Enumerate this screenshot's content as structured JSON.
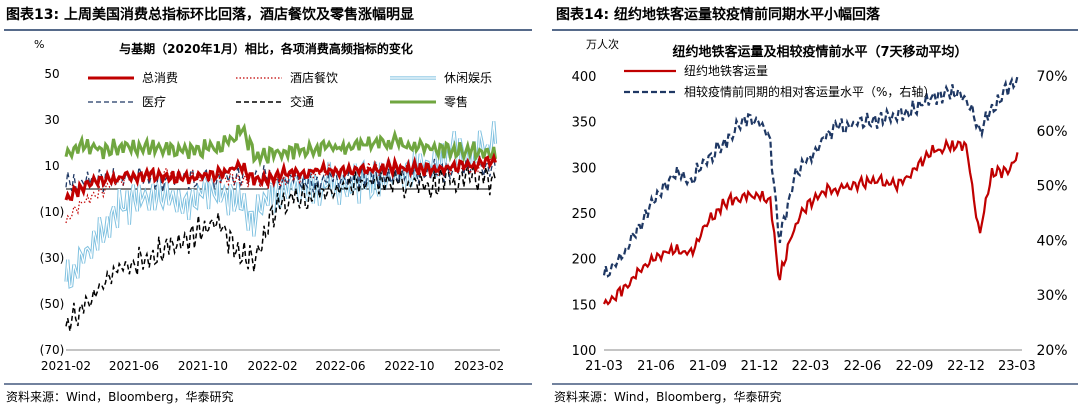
{
  "left_panel": {
    "fig_title": "图表13:  上周美国消费总指标环比回落，酒店餐饮及零售涨幅明显",
    "source": "资料来源：Wind，Bloomberg，华泰研究"
  },
  "right_panel": {
    "fig_title": "图表14:  纽约地铁客运量较疫情前同期水平小幅回落",
    "source": "资料来源：Wind，Bloomberg，华泰研究"
  },
  "chart_data": [
    {
      "type": "line",
      "title": "与基期（2020年1月）相比，各项消费高频指标的变化",
      "ylabel": "%",
      "ylim": [
        -70,
        50
      ],
      "yticks": [
        50,
        30,
        10,
        -10,
        -30,
        -50,
        -70
      ],
      "ytick_labels": [
        "50",
        "30",
        "10",
        "(10)",
        "(30)",
        "(50)",
        "(70)"
      ],
      "xlim": [
        "2021-02-01",
        "2023-03-10"
      ],
      "xticks": [
        "2021-02-01",
        "2021-06-01",
        "2021-10-01",
        "2022-02-01",
        "2022-06-01",
        "2022-10-01",
        "2023-02-01"
      ],
      "xtick_labels": [
        "2021-02",
        "2021-06",
        "2021-10",
        "2022-02",
        "2022-06",
        "2022-10",
        "2023-02"
      ],
      "legend_position": "top",
      "series": [
        {
          "name": "总消费",
          "color": "#c00000",
          "style": "solid",
          "width": 3,
          "x": [
            "2021-02-01",
            "2021-03-15",
            "2021-05-01",
            "2021-07-01",
            "2021-09-01",
            "2021-11-01",
            "2021-12-10",
            "2022-01-01",
            "2022-03-01",
            "2022-05-01",
            "2022-07-01",
            "2022-09-01",
            "2022-11-01",
            "2023-01-01",
            "2023-03-05"
          ],
          "y": [
            -4,
            3,
            5,
            6,
            5,
            7,
            10,
            3,
            7,
            8,
            8,
            9,
            9,
            10,
            12
          ]
        },
        {
          "name": "酒店餐饮",
          "color": "#c00000",
          "style": "dotted",
          "width": 1.2,
          "x": [
            "2021-02-01",
            "2021-03-01",
            "2021-04-01",
            "2021-05-01",
            "2021-06-01",
            "2021-08-01",
            "2021-10-01",
            "2021-12-01",
            "2022-02-01",
            "2022-04-01",
            "2022-06-01",
            "2022-08-01",
            "2022-10-01",
            "2022-12-01",
            "2023-02-01",
            "2023-03-05"
          ],
          "y": [
            -14,
            -6,
            -1,
            3,
            6,
            7,
            5,
            4,
            3,
            6,
            8,
            9,
            9,
            8,
            10,
            16
          ]
        },
        {
          "name": "休闲娱乐",
          "color": "#7fc1e0",
          "style": "double",
          "width": 3,
          "x": [
            "2021-02-01",
            "2021-03-01",
            "2021-04-01",
            "2021-05-01",
            "2021-06-01",
            "2021-07-01",
            "2021-08-01",
            "2021-09-01",
            "2021-10-01",
            "2021-11-01",
            "2021-12-01",
            "2022-01-01",
            "2022-02-01",
            "2022-03-01",
            "2022-05-01",
            "2022-07-01",
            "2022-09-01",
            "2022-11-01",
            "2022-12-20",
            "2023-01-15",
            "2023-03-05"
          ],
          "y": [
            -38,
            -30,
            -20,
            -10,
            -5,
            -2,
            -4,
            -5,
            -3,
            0,
            -5,
            -12,
            -3,
            0,
            2,
            3,
            5,
            10,
            18,
            12,
            22
          ]
        },
        {
          "name": "医疗",
          "color": "#1f3864",
          "style": "dashed",
          "width": 1.3,
          "x": [
            "2021-02-01",
            "2021-04-01",
            "2021-06-01",
            "2021-08-01",
            "2021-10-01",
            "2021-12-01",
            "2022-02-01",
            "2022-04-01",
            "2022-06-01",
            "2022-08-01",
            "2022-10-01",
            "2022-12-01",
            "2023-02-01",
            "2023-03-05"
          ],
          "y": [
            2,
            4,
            5,
            4,
            5,
            6,
            5,
            3,
            5,
            6,
            7,
            8,
            10,
            11
          ]
        },
        {
          "name": "交通",
          "color": "#000000",
          "style": "dashed",
          "width": 1.5,
          "x": [
            "2021-02-01",
            "2021-03-01",
            "2021-04-01",
            "2021-05-01",
            "2021-06-01",
            "2021-07-01",
            "2021-08-01",
            "2021-09-01",
            "2021-10-01",
            "2021-11-01",
            "2021-12-01",
            "2022-01-01",
            "2022-02-01",
            "2022-03-01",
            "2022-05-01",
            "2022-07-01",
            "2022-09-01",
            "2022-11-01",
            "2023-01-01",
            "2023-03-05"
          ],
          "y": [
            -58,
            -52,
            -42,
            -35,
            -32,
            -28,
            -25,
            -22,
            -18,
            -15,
            -28,
            -30,
            -10,
            -5,
            -2,
            2,
            3,
            2,
            4,
            5
          ]
        },
        {
          "name": "零售",
          "color": "#70a640",
          "style": "solid",
          "width": 3,
          "x": [
            "2021-02-01",
            "2021-03-01",
            "2021-04-01",
            "2021-05-01",
            "2021-07-01",
            "2021-09-01",
            "2021-11-01",
            "2021-12-10",
            "2022-01-01",
            "2022-03-01",
            "2022-05-01",
            "2022-07-01",
            "2022-09-01",
            "2022-11-01",
            "2023-01-01",
            "2023-03-05"
          ],
          "y": [
            15,
            20,
            17,
            18,
            19,
            17,
            18,
            25,
            14,
            16,
            18,
            19,
            20,
            18,
            17,
            15
          ]
        }
      ]
    },
    {
      "type": "line",
      "title": "纽约地铁客运量及相较疫情前水平（7天移动平均）",
      "ylabel": "万人次",
      "ylim": [
        100,
        400
      ],
      "yticks": [
        100,
        150,
        200,
        250,
        300,
        350,
        400
      ],
      "y2lim": [
        20,
        70
      ],
      "y2ticks": [
        20,
        30,
        40,
        50,
        60,
        70
      ],
      "y2tick_labels": [
        "20%",
        "30%",
        "40%",
        "50%",
        "60%",
        "70%"
      ],
      "xlim": [
        "2021-03-01",
        "2023-03-10"
      ],
      "xticks": [
        "2021-03-01",
        "2021-06-01",
        "2021-09-01",
        "2021-12-01",
        "2022-03-01",
        "2022-06-01",
        "2022-09-01",
        "2022-12-01",
        "2023-03-01"
      ],
      "xtick_labels": [
        "21-03",
        "21-06",
        "21-09",
        "21-12",
        "22-03",
        "22-06",
        "22-09",
        "22-12",
        "23-03"
      ],
      "legend_position": "top-left",
      "series": [
        {
          "name": "纽约地铁客运量",
          "color": "#c00000",
          "style": "solid",
          "width": 2.2,
          "axis": "left",
          "x": [
            "2021-03-01",
            "2021-04-01",
            "2021-05-01",
            "2021-06-01",
            "2021-07-01",
            "2021-08-01",
            "2021-09-01",
            "2021-10-01",
            "2021-11-01",
            "2021-12-01",
            "2021-12-20",
            "2022-01-05",
            "2022-02-01",
            "2022-03-01",
            "2022-04-01",
            "2022-05-01",
            "2022-06-01",
            "2022-07-01",
            "2022-08-01",
            "2022-09-01",
            "2022-10-01",
            "2022-11-01",
            "2022-12-01",
            "2022-12-25",
            "2023-01-15",
            "2023-02-15",
            "2023-03-05"
          ],
          "y": [
            152,
            165,
            185,
            205,
            210,
            205,
            240,
            262,
            268,
            270,
            262,
            178,
            235,
            262,
            275,
            278,
            282,
            285,
            282,
            295,
            318,
            322,
            325,
            225,
            292,
            298,
            315
          ]
        },
        {
          "name": "相较疫情前同期的相对客运量水平（%，右轴）",
          "color": "#1f3864",
          "style": "dashed",
          "width": 2.2,
          "axis": "right",
          "x": [
            "2021-03-01",
            "2021-04-01",
            "2021-05-01",
            "2021-06-01",
            "2021-07-01",
            "2021-08-01",
            "2021-09-01",
            "2021-10-01",
            "2021-11-01",
            "2021-12-01",
            "2021-12-20",
            "2022-01-05",
            "2022-02-01",
            "2022-03-01",
            "2022-04-01",
            "2022-05-01",
            "2022-07-01",
            "2022-09-01",
            "2022-10-01",
            "2022-11-01",
            "2022-12-01",
            "2022-12-25",
            "2023-01-15",
            "2023-02-15",
            "2023-03-05"
          ],
          "y": [
            34,
            37,
            42,
            48,
            52,
            51,
            55,
            58,
            62,
            62,
            58,
            40,
            52,
            55,
            60,
            61,
            62,
            64,
            66,
            67,
            66,
            60,
            64,
            68,
            70
          ]
        }
      ]
    }
  ]
}
